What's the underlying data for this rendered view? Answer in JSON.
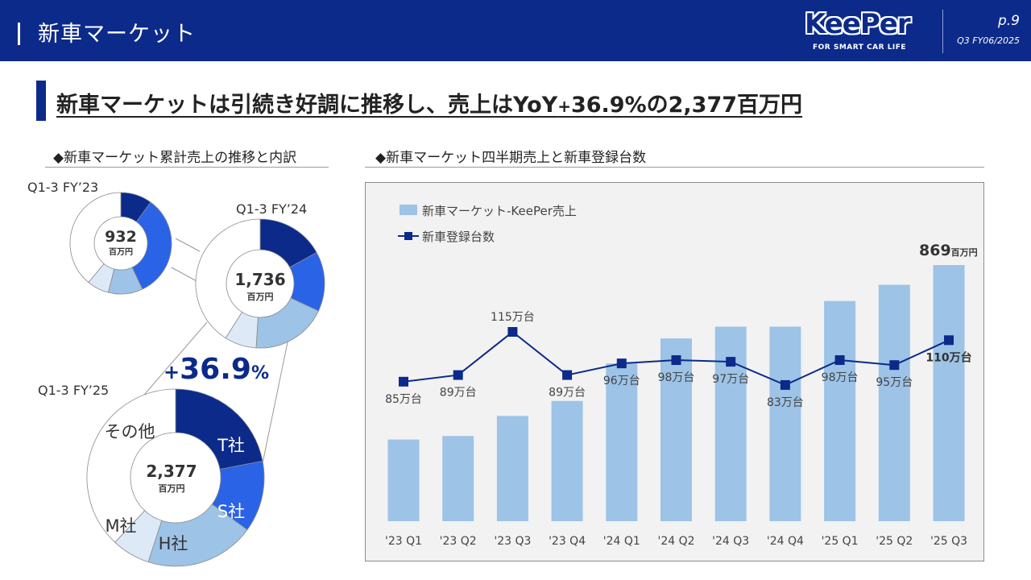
{
  "header": {
    "title": "新車マーケット",
    "logo": "KeePer",
    "logo_tagline": "FOR SMART CAR LIFE",
    "page": "p.9",
    "period": "Q3 FY06/2025"
  },
  "headline": {
    "part1": "新車マーケットは引続き好調に推移し、売上はYoY",
    "plus": "+",
    "part2": "36.9%の2,377百万円"
  },
  "left_section": {
    "title": "◆新車マーケット累計売上の推移と内訳"
  },
  "right_section": {
    "title": "◆新車マーケット四半期売上と新車登録台数"
  },
  "colors": {
    "header_bg": "#0b2a8a",
    "t_company": "#0b2a8a",
    "s_company": "#2b63e6",
    "h_company": "#9dc3e6",
    "m_company": "#dde9f7",
    "other": "#ffffff",
    "bar": "#9dc3e6",
    "line": "#0b2a8a",
    "growth": "#0b2a8a"
  },
  "chart_data": [
    {
      "type": "pie",
      "title": "",
      "donuts": [
        {
          "label": "Q1-3 FY’23",
          "total": "932",
          "unit": "百万円",
          "segments": [
            {
              "name": "T社",
              "share": 0.1
            },
            {
              "name": "S社",
              "share": 0.33
            },
            {
              "name": "H社",
              "share": 0.11
            },
            {
              "name": "M社",
              "share": 0.07
            },
            {
              "name": "その他",
              "share": 0.39
            }
          ]
        },
        {
          "label": "Q1-3 FY’24",
          "total": "1,736",
          "unit": "百万円",
          "segments": [
            {
              "name": "T社",
              "share": 0.17
            },
            {
              "name": "S社",
              "share": 0.15
            },
            {
              "name": "H社",
              "share": 0.19
            },
            {
              "name": "M社",
              "share": 0.08
            },
            {
              "name": "その他",
              "share": 0.41
            }
          ]
        },
        {
          "label": "Q1-3 FY’25",
          "total": "2,377",
          "unit": "百万円",
          "segments": [
            {
              "name": "T社",
              "share": 0.22
            },
            {
              "name": "S社",
              "share": 0.13
            },
            {
              "name": "H社",
              "share": 0.2
            },
            {
              "name": "M社",
              "share": 0.07
            },
            {
              "name": "その他",
              "share": 0.38
            }
          ]
        }
      ],
      "growth": {
        "sign": "+",
        "value": "36.9",
        "unit": "%"
      }
    },
    {
      "type": "bar",
      "title": "",
      "categories": [
        "'23 Q1",
        "'23 Q2",
        "'23 Q3",
        "'23 Q4",
        "'24 Q1",
        "'24 Q2",
        "'24 Q3",
        "'24 Q4",
        "'25 Q1",
        "'25 Q2",
        "'25 Q3"
      ],
      "series": [
        {
          "name": "新車マーケット-KeePer売上",
          "kind": "bar",
          "values": [
            277,
            289,
            357,
            408,
            535,
            620,
            660,
            660,
            747,
            802,
            869
          ]
        },
        {
          "name": "新車登録台数",
          "kind": "line",
          "values": [
            85,
            89,
            115,
            89,
            96,
            98,
            97,
            83,
            98,
            95,
            110
          ],
          "labels": [
            "85万台",
            "89万台",
            "115万台",
            "89万台",
            "96万台",
            "98万台",
            "97万台",
            "83万台",
            "98万台",
            "95万台",
            "110万台"
          ]
        }
      ],
      "bar_value_label": {
        "value": "869",
        "unit": "百万円"
      },
      "legend_position": "top-left",
      "grid": false
    }
  ]
}
